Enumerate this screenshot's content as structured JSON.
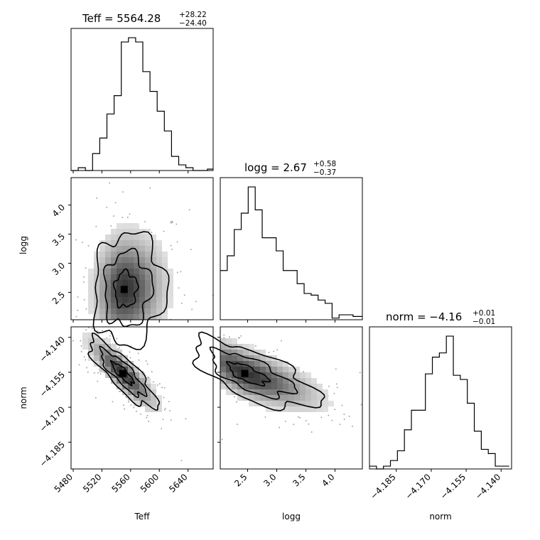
{
  "chart_data": {
    "type": "corner",
    "parameters": [
      "Teff",
      "logg",
      "norm"
    ],
    "titles": [
      {
        "param": "Teff",
        "label": "Teff = 5564.28",
        "plus": "+28.22",
        "minus": "−24.40"
      },
      {
        "param": "logg",
        "label": "logg = 2.67",
        "plus": "+0.58",
        "minus": "−0.37"
      },
      {
        "param": "norm",
        "label": "norm = −4.16",
        "plus": "+0.01",
        "minus": "−0.01"
      }
    ],
    "ranges": {
      "Teff": [
        5477,
        5675
      ],
      "logg": [
        2.03,
        4.47
      ],
      "norm": [
        -4.1965,
        -4.1355
      ]
    },
    "ticks": {
      "Teff": {
        "values": [
          5480,
          5520,
          5560,
          5600,
          5640
        ],
        "labels": [
          "5480",
          "5520",
          "5560",
          "5600",
          "5640"
        ]
      },
      "logg": {
        "values": [
          2.5,
          3.0,
          3.5,
          4.0
        ],
        "labels": [
          "2.5",
          "3.0",
          "3.5",
          "4.0"
        ]
      },
      "norm": {
        "values": [
          -4.185,
          -4.17,
          -4.155,
          -4.14
        ],
        "labels": [
          "−4.185",
          "−4.170",
          "−4.155",
          "−4.140"
        ]
      }
    },
    "axis_labels": {
      "Teff": "Teff",
      "logg": "logg",
      "norm": "norm"
    },
    "histograms": {
      "Teff": {
        "bin_edges": [
          5477,
          5487,
          5497,
          5507,
          5517,
          5527,
          5537,
          5547,
          5557,
          5567,
          5577,
          5587,
          5597,
          5607,
          5617,
          5627,
          5637,
          5647,
          5657,
          5667,
          5675
        ],
        "counts": [
          0,
          2,
          0,
          12,
          23,
          40,
          53,
          91,
          94,
          91,
          70,
          56,
          42,
          28,
          10,
          4,
          2,
          0,
          0,
          1
        ]
      },
      "logg": {
        "bin_edges": [
          2.03,
          2.15,
          2.27,
          2.39,
          2.51,
          2.63,
          2.75,
          2.87,
          2.99,
          3.11,
          3.23,
          3.35,
          3.47,
          3.59,
          3.71,
          3.83,
          3.95,
          4.07,
          4.19,
          4.31,
          4.47
        ],
        "counts": [
          30,
          39,
          55,
          65,
          81,
          67,
          50,
          50,
          42,
          30,
          30,
          22,
          16,
          15,
          12,
          10,
          1,
          3,
          3,
          2
        ]
      },
      "norm": {
        "bin_edges": [
          -4.1965,
          -4.1935,
          -4.1905,
          -4.1875,
          -4.1845,
          -4.1815,
          -4.1785,
          -4.1755,
          -4.1725,
          -4.1695,
          -4.1665,
          -4.1635,
          -4.1605,
          -4.1575,
          -4.1545,
          -4.1515,
          -4.1485,
          -4.1455,
          -4.1425,
          -4.1395,
          -4.1365
        ],
        "counts": [
          2,
          0,
          2,
          6,
          13,
          28,
          42,
          42,
          68,
          80,
          83,
          95,
          67,
          64,
          47,
          27,
          14,
          11,
          2,
          2
        ]
      }
    },
    "density_peaks": {
      "logg_vs_Teff": {
        "x": 5551,
        "y": 2.55
      },
      "norm_vs_Teff": {
        "x": 5549,
        "y": -4.1555
      },
      "norm_vs_logg": {
        "x": 2.45,
        "y": -4.1555
      }
    },
    "grid": false
  }
}
